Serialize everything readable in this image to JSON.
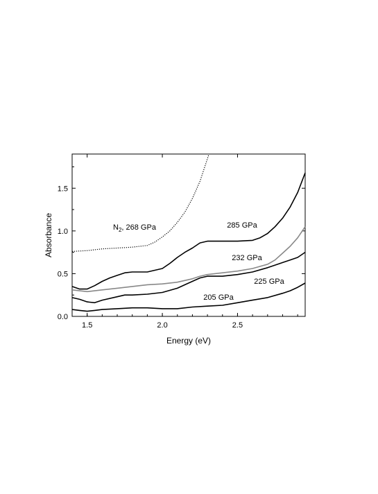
{
  "chart_data": {
    "type": "line",
    "xlabel": "Energy (eV)",
    "ylabel": "Absorbance",
    "xlim": [
      1.4,
      2.95
    ],
    "ylim": [
      0.0,
      1.9
    ],
    "x_ticks": [
      "1.5",
      "2.0",
      "2.5"
    ],
    "y_ticks": [
      "0.0",
      "0.5",
      "1.0",
      "1.5"
    ],
    "grid": false,
    "series": [
      {
        "name_main": "N",
        "name_sub": "2",
        "name_rest": ", 268 GPa",
        "style": "dotted",
        "color": "#000000",
        "points": [
          [
            1.4,
            0.76
          ],
          [
            1.5,
            0.77
          ],
          [
            1.6,
            0.79
          ],
          [
            1.7,
            0.8
          ],
          [
            1.8,
            0.81
          ],
          [
            1.9,
            0.83
          ],
          [
            1.95,
            0.87
          ],
          [
            2.0,
            0.93
          ],
          [
            2.05,
            1.0
          ],
          [
            2.1,
            1.1
          ],
          [
            2.15,
            1.22
          ],
          [
            2.2,
            1.38
          ],
          [
            2.25,
            1.58
          ],
          [
            2.28,
            1.74
          ],
          [
            2.31,
            1.9
          ]
        ]
      },
      {
        "name": "285 GPa",
        "style": "solid",
        "color": "#000000",
        "points": [
          [
            1.4,
            0.35
          ],
          [
            1.45,
            0.32
          ],
          [
            1.5,
            0.32
          ],
          [
            1.55,
            0.36
          ],
          [
            1.6,
            0.41
          ],
          [
            1.65,
            0.45
          ],
          [
            1.7,
            0.48
          ],
          [
            1.75,
            0.51
          ],
          [
            1.8,
            0.52
          ],
          [
            1.9,
            0.52
          ],
          [
            2.0,
            0.56
          ],
          [
            2.05,
            0.62
          ],
          [
            2.1,
            0.69
          ],
          [
            2.15,
            0.75
          ],
          [
            2.2,
            0.8
          ],
          [
            2.25,
            0.86
          ],
          [
            2.3,
            0.88
          ],
          [
            2.4,
            0.88
          ],
          [
            2.5,
            0.88
          ],
          [
            2.6,
            0.89
          ],
          [
            2.65,
            0.92
          ],
          [
            2.7,
            0.97
          ],
          [
            2.75,
            1.05
          ],
          [
            2.8,
            1.15
          ],
          [
            2.85,
            1.28
          ],
          [
            2.9,
            1.45
          ],
          [
            2.95,
            1.68
          ]
        ]
      },
      {
        "name": "232 GPa",
        "style": "solid",
        "color": "#888888",
        "points": [
          [
            1.4,
            0.31
          ],
          [
            1.45,
            0.3
          ],
          [
            1.5,
            0.29
          ],
          [
            1.55,
            0.3
          ],
          [
            1.6,
            0.31
          ],
          [
            1.7,
            0.33
          ],
          [
            1.8,
            0.35
          ],
          [
            1.9,
            0.37
          ],
          [
            2.0,
            0.38
          ],
          [
            2.1,
            0.4
          ],
          [
            2.2,
            0.44
          ],
          [
            2.25,
            0.47
          ],
          [
            2.3,
            0.49
          ],
          [
            2.35,
            0.5
          ],
          [
            2.4,
            0.51
          ],
          [
            2.5,
            0.53
          ],
          [
            2.6,
            0.56
          ],
          [
            2.7,
            0.61
          ],
          [
            2.75,
            0.66
          ],
          [
            2.8,
            0.74
          ],
          [
            2.85,
            0.82
          ],
          [
            2.9,
            0.92
          ],
          [
            2.95,
            1.05
          ]
        ]
      },
      {
        "name": "225 GPa",
        "style": "solid",
        "color": "#000000",
        "points": [
          [
            1.4,
            0.22
          ],
          [
            1.45,
            0.2
          ],
          [
            1.5,
            0.17
          ],
          [
            1.55,
            0.16
          ],
          [
            1.6,
            0.19
          ],
          [
            1.7,
            0.23
          ],
          [
            1.75,
            0.25
          ],
          [
            1.8,
            0.25
          ],
          [
            1.9,
            0.26
          ],
          [
            2.0,
            0.28
          ],
          [
            2.1,
            0.33
          ],
          [
            2.15,
            0.37
          ],
          [
            2.2,
            0.41
          ],
          [
            2.25,
            0.45
          ],
          [
            2.3,
            0.47
          ],
          [
            2.4,
            0.47
          ],
          [
            2.5,
            0.49
          ],
          [
            2.6,
            0.52
          ],
          [
            2.7,
            0.57
          ],
          [
            2.8,
            0.63
          ],
          [
            2.85,
            0.66
          ],
          [
            2.9,
            0.69
          ],
          [
            2.95,
            0.75
          ]
        ]
      },
      {
        "name": "205 GPa",
        "style": "solid",
        "color": "#000000",
        "points": [
          [
            1.4,
            0.08
          ],
          [
            1.45,
            0.07
          ],
          [
            1.5,
            0.06
          ],
          [
            1.55,
            0.07
          ],
          [
            1.6,
            0.08
          ],
          [
            1.7,
            0.09
          ],
          [
            1.8,
            0.1
          ],
          [
            1.9,
            0.1
          ],
          [
            2.0,
            0.09
          ],
          [
            2.1,
            0.09
          ],
          [
            2.2,
            0.11
          ],
          [
            2.3,
            0.12
          ],
          [
            2.4,
            0.13
          ],
          [
            2.5,
            0.16
          ],
          [
            2.6,
            0.19
          ],
          [
            2.7,
            0.22
          ],
          [
            2.8,
            0.27
          ],
          [
            2.85,
            0.3
          ],
          [
            2.9,
            0.34
          ],
          [
            2.95,
            0.39
          ]
        ]
      }
    ]
  }
}
